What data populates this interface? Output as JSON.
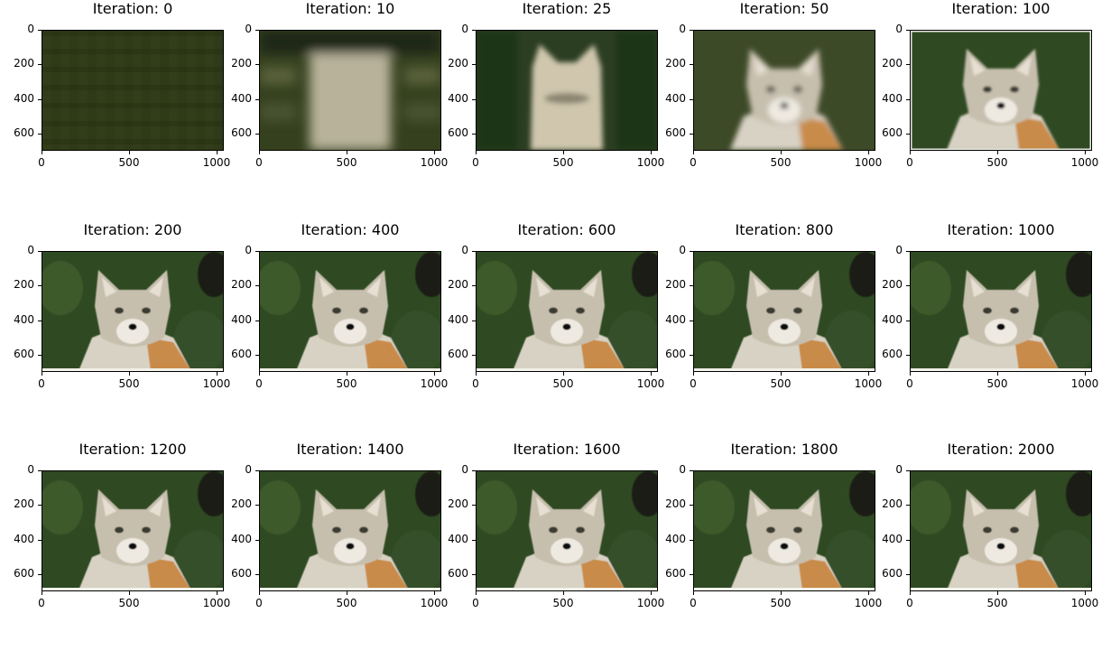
{
  "figure": {
    "panels": [
      {
        "title": "Iteration: 0",
        "stage": 0
      },
      {
        "title": "Iteration: 10",
        "stage": 1
      },
      {
        "title": "Iteration: 25",
        "stage": 2
      },
      {
        "title": "Iteration: 50",
        "stage": 3
      },
      {
        "title": "Iteration: 100",
        "stage": 4
      },
      {
        "title": "Iteration: 200",
        "stage": 5
      },
      {
        "title": "Iteration: 400",
        "stage": 5
      },
      {
        "title": "Iteration: 600",
        "stage": 5
      },
      {
        "title": "Iteration: 800",
        "stage": 5
      },
      {
        "title": "Iteration: 1000",
        "stage": 5
      },
      {
        "title": "Iteration: 1200",
        "stage": 6
      },
      {
        "title": "Iteration: 1400",
        "stage": 6
      },
      {
        "title": "Iteration: 1600",
        "stage": 6
      },
      {
        "title": "Iteration: 1800",
        "stage": 6
      },
      {
        "title": "Iteration: 2000",
        "stage": 6
      }
    ],
    "y_ticks": [
      "0",
      "200",
      "400",
      "600"
    ],
    "x_ticks": [
      "0",
      "500",
      "1000"
    ],
    "colors": {
      "background_dark": "#2e3a18",
      "forest": "#2f4a23",
      "fur_light": "#d8d2c4",
      "fur_orange": "#c98b4a",
      "shadow": "#1a1f12"
    }
  }
}
